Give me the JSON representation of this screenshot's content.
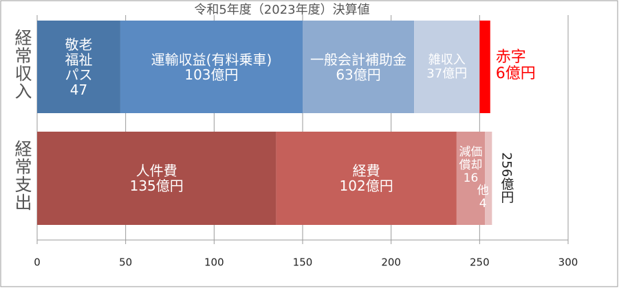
{
  "chart_data": {
    "type": "stacked-bar-horizontal",
    "title": "令和5年度（2023年度）決算値",
    "categories": [
      "経常収入",
      "経常支出"
    ],
    "series": [
      {
        "name": "敬老福祉パス",
        "color": "#4a77a8",
        "values": [
          47,
          null
        ]
      },
      {
        "name": "運輸収益(有料乗車)",
        "color": "#5a8ac2",
        "values": [
          103,
          null
        ],
        "value_labels": [
          "103億円",
          null
        ]
      },
      {
        "name": "一般会計補助金",
        "color": "#8eabd0",
        "values": [
          63,
          null
        ],
        "value_labels": [
          "63億円",
          null
        ]
      },
      {
        "name": "雑収入",
        "color": "#c2cfe3",
        "values": [
          37,
          null
        ],
        "value_labels": [
          "37億円",
          null
        ]
      },
      {
        "name": "赤字",
        "color": "#ff0000",
        "values": [
          6,
          null
        ],
        "value_labels": [
          "6億円",
          null
        ]
      },
      {
        "name": "人件費",
        "color": "#a84f4a",
        "values": [
          null,
          135
        ],
        "value_labels": [
          null,
          "135億円"
        ]
      },
      {
        "name": "経費",
        "color": "#c5605a",
        "values": [
          null,
          102
        ],
        "value_labels": [
          null,
          "102億円"
        ]
      },
      {
        "name": "減価償却",
        "color": "#d99593",
        "values": [
          null,
          16
        ]
      },
      {
        "name": "他",
        "color": "#e8c0c0",
        "values": [
          null,
          4
        ]
      }
    ],
    "total_label": "256億円",
    "xlim": [
      0,
      300
    ],
    "xticks": [
      0,
      50,
      100,
      150,
      200,
      250,
      300
    ],
    "grid": true
  }
}
